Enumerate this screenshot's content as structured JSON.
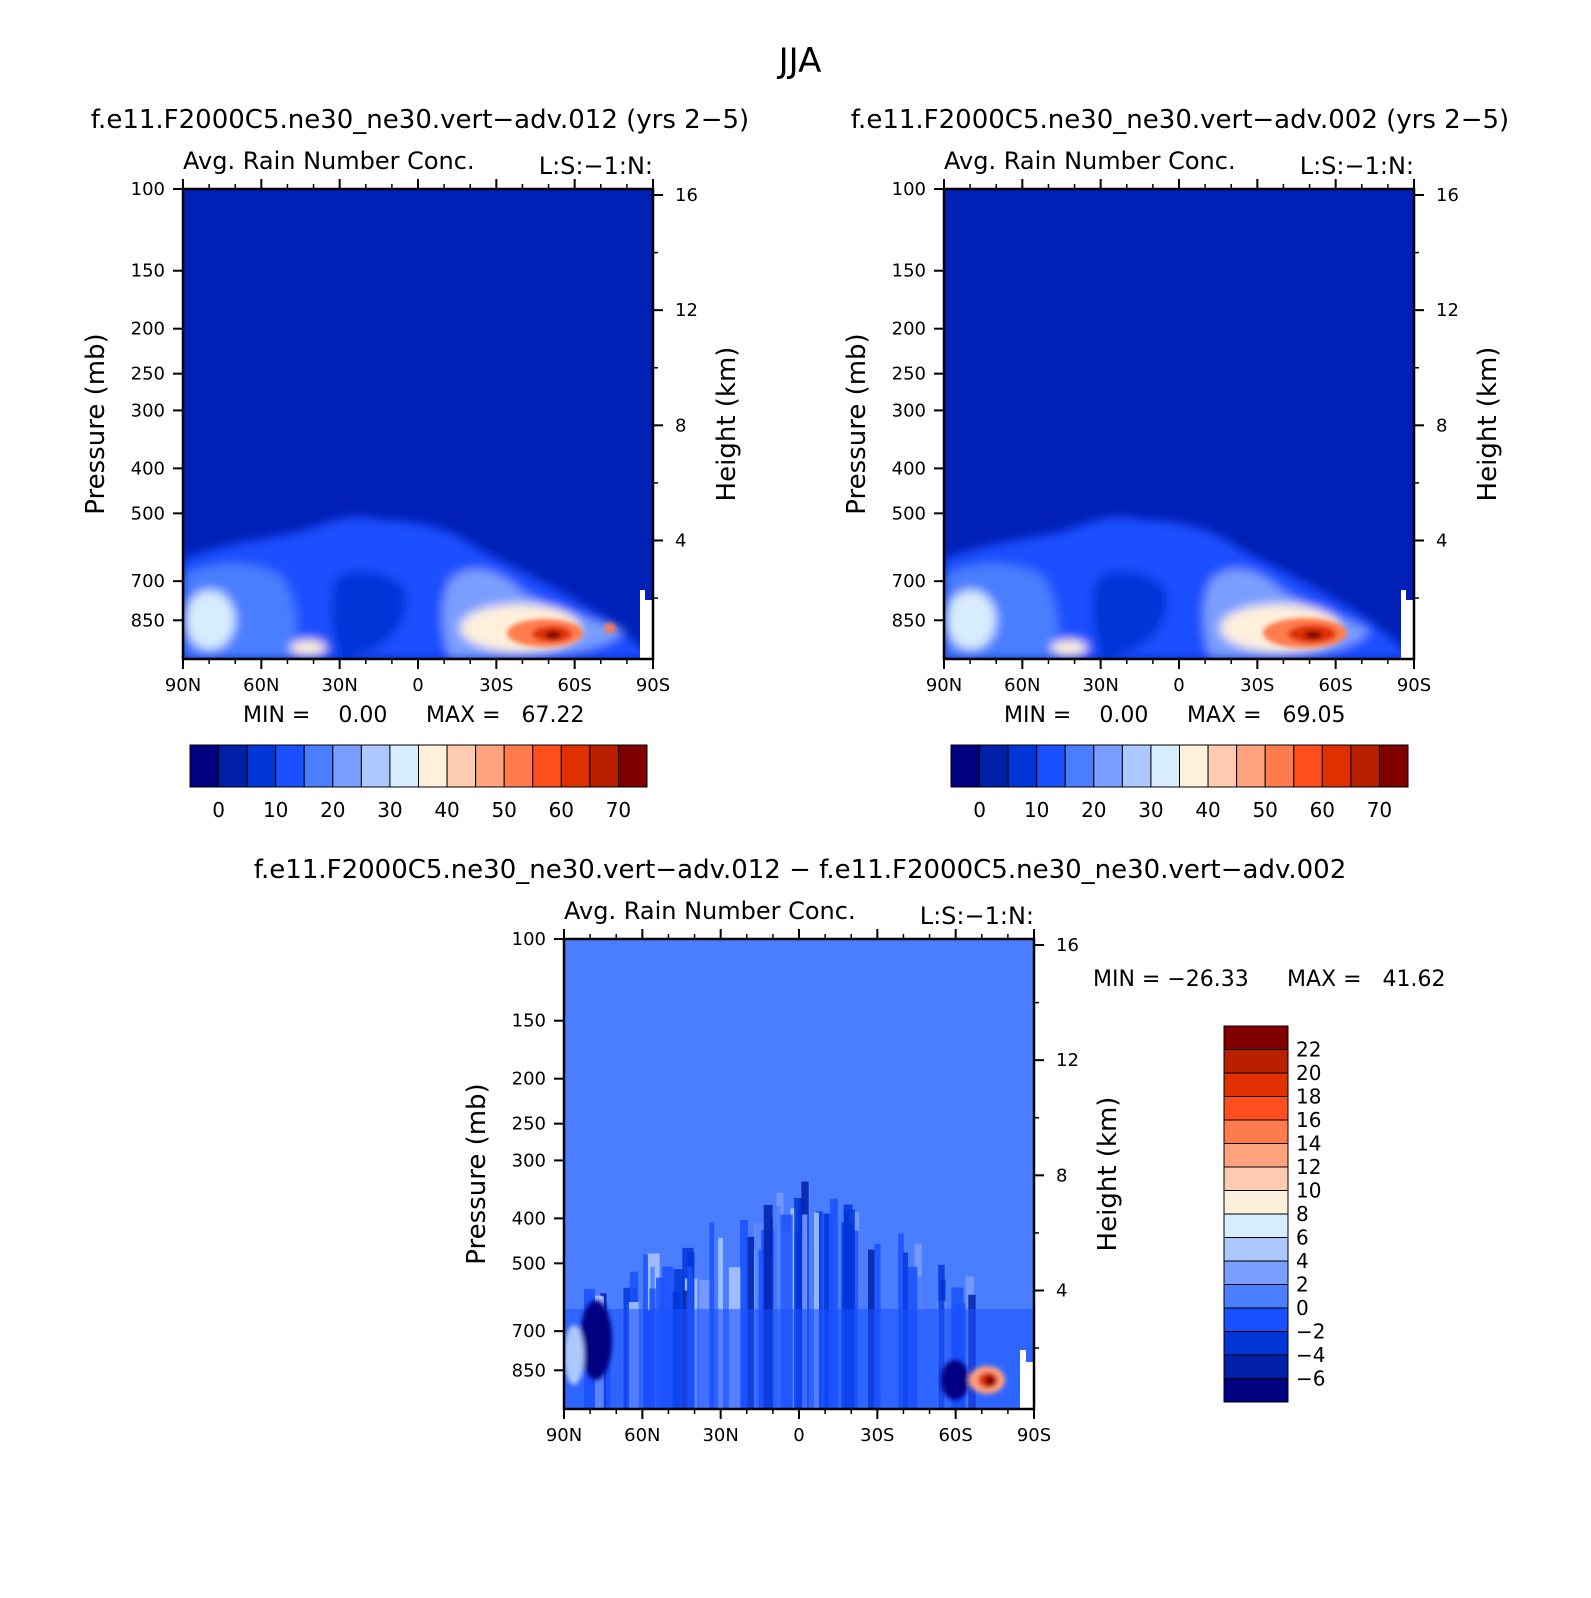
{
  "figure_title": "JJA",
  "chart_data": [
    {
      "type": "heatmap",
      "case_title": "f.e11.F2000C5.ne30_ne30.vert−adv.012 (yrs 2−5)",
      "title": "Avg. Rain Number Conc.",
      "corner_label": "L:S:−1:N:",
      "xlabel": "",
      "ylabel": "Pressure (mb)",
      "ylabel_right": "Height (km)",
      "x_ticks": [
        "90N",
        "60N",
        "30N",
        "0",
        "30S",
        "60S",
        "90S"
      ],
      "y_ticks": [
        "100",
        "150",
        "200",
        "250",
        "300",
        "400",
        "500",
        "700",
        "850"
      ],
      "y_ticks_right": [
        "16",
        "12",
        "8",
        "4"
      ],
      "min_text": "MIN =    0.00",
      "max_text": "MAX =   67.22",
      "min": 0.0,
      "max": 67.22,
      "colorbar_labels": [
        "0",
        "10",
        "20",
        "30",
        "40",
        "50",
        "60",
        "70"
      ],
      "colorbar_orientation": "horizontal",
      "colors": [
        "#000080",
        "#0020a8",
        "#0036d8",
        "#1a50ff",
        "#4a7eff",
        "#7a9eff",
        "#adc8ff",
        "#d8ecff",
        "#fff0dc",
        "#ffcbb0",
        "#ffa27e",
        "#ff7b4e",
        "#ff4d1e",
        "#e03000",
        "#b82000",
        "#800000"
      ],
      "hotspot_lat": -45,
      "hotspot_value": 67.22
    },
    {
      "type": "heatmap",
      "case_title": "f.e11.F2000C5.ne30_ne30.vert−adv.002 (yrs 2−5)",
      "title": "Avg. Rain Number Conc.",
      "corner_label": "L:S:−1:N:",
      "xlabel": "",
      "ylabel": "Pressure (mb)",
      "ylabel_right": "Height (km)",
      "x_ticks": [
        "90N",
        "60N",
        "30N",
        "0",
        "30S",
        "60S",
        "90S"
      ],
      "y_ticks": [
        "100",
        "150",
        "200",
        "250",
        "300",
        "400",
        "500",
        "700",
        "850"
      ],
      "y_ticks_right": [
        "16",
        "12",
        "8",
        "4"
      ],
      "min_text": "MIN =    0.00",
      "max_text": "MAX =   69.05",
      "min": 0.0,
      "max": 69.05,
      "colorbar_labels": [
        "0",
        "10",
        "20",
        "30",
        "40",
        "50",
        "60",
        "70"
      ],
      "colorbar_orientation": "horizontal",
      "colors": [
        "#000080",
        "#0020a8",
        "#0036d8",
        "#1a50ff",
        "#4a7eff",
        "#7a9eff",
        "#adc8ff",
        "#d8ecff",
        "#fff0dc",
        "#ffcbb0",
        "#ffa27e",
        "#ff7b4e",
        "#ff4d1e",
        "#e03000",
        "#b82000",
        "#800000"
      ],
      "hotspot_lat": -45,
      "hotspot_value": 69.05
    },
    {
      "type": "heatmap",
      "case_title": "f.e11.F2000C5.ne30_ne30.vert−adv.012 − f.e11.F2000C5.ne30_ne30.vert−adv.002",
      "title": "Avg. Rain Number Conc.",
      "corner_label": "L:S:−1:N:",
      "xlabel": "",
      "ylabel": "Pressure (mb)",
      "ylabel_right": "Height (km)",
      "x_ticks": [
        "90N",
        "60N",
        "30N",
        "0",
        "30S",
        "60S",
        "90S"
      ],
      "y_ticks": [
        "100",
        "150",
        "200",
        "250",
        "300",
        "400",
        "500",
        "700",
        "850"
      ],
      "y_ticks_right": [
        "16",
        "12",
        "8",
        "4"
      ],
      "min_text": "MIN = −26.33",
      "max_text": "MAX =   41.62",
      "min": -26.33,
      "max": 41.62,
      "colorbar_labels": [
        "22",
        "20",
        "18",
        "16",
        "14",
        "12",
        "10",
        "8",
        "6",
        "4",
        "2",
        "0",
        "−2",
        "−4",
        "−6"
      ],
      "colorbar_orientation": "vertical",
      "colors": [
        "#800000",
        "#b82000",
        "#e03000",
        "#ff4d1e",
        "#ff7b4e",
        "#ffa27e",
        "#ffcbb0",
        "#fff0dc",
        "#d8ecff",
        "#adc8ff",
        "#7a9eff",
        "#4a7eff",
        "#1a50ff",
        "#0036d8",
        "#0020a8",
        "#000080"
      ],
      "hotspot_lat": -75,
      "hotspot_value": 41.62
    }
  ]
}
